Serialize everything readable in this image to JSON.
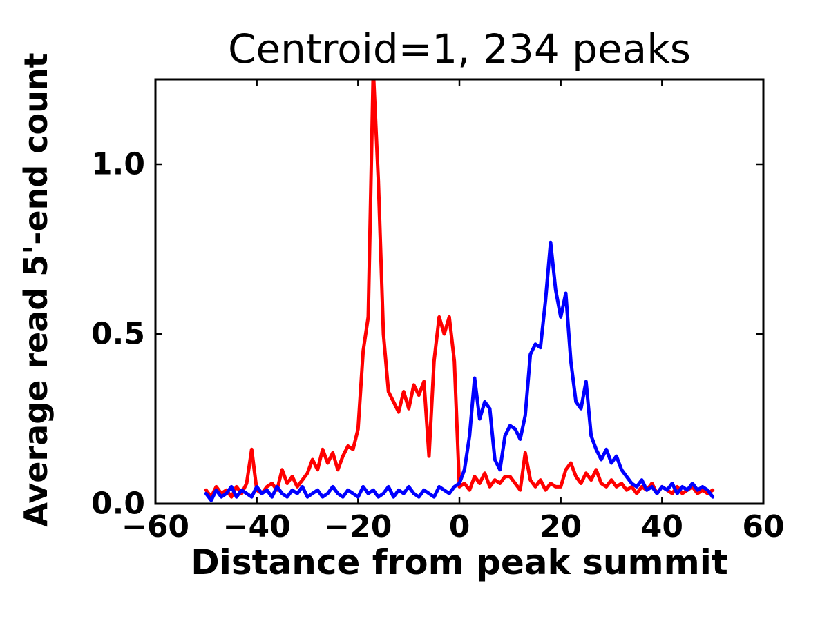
{
  "figure": {
    "background": "#ffffff"
  },
  "chart_data": {
    "type": "line",
    "title": "Centroid=1, 234 peaks",
    "xlabel": "Distance from peak summit",
    "ylabel": "Average read 5'-end count",
    "xlim": [
      -60,
      60
    ],
    "ylim": [
      0,
      1.25
    ],
    "xticks": [
      -60,
      -40,
      -20,
      0,
      20,
      40,
      60
    ],
    "xtick_labels": [
      "−60",
      "−40",
      "−20",
      "0",
      "20",
      "40",
      "60"
    ],
    "yticks": [
      0.0,
      0.5,
      1.0
    ],
    "ytick_labels": [
      "0.0",
      "0.5",
      "1.0"
    ],
    "grid": false,
    "legend_position": "none",
    "axis_color": "#000000",
    "line_width": 5,
    "x": [
      -50,
      -49,
      -48,
      -47,
      -46,
      -45,
      -44,
      -43,
      -42,
      -41,
      -40,
      -39,
      -38,
      -37,
      -36,
      -35,
      -34,
      -33,
      -32,
      -31,
      -30,
      -29,
      -28,
      -27,
      -26,
      -25,
      -24,
      -23,
      -22,
      -21,
      -20,
      -19,
      -18,
      -17,
      -16,
      -15,
      -14,
      -13,
      -12,
      -11,
      -10,
      -9,
      -8,
      -7,
      -6,
      -5,
      -4,
      -3,
      -2,
      -1,
      0,
      1,
      2,
      3,
      4,
      5,
      6,
      7,
      8,
      9,
      10,
      11,
      12,
      13,
      14,
      15,
      16,
      17,
      18,
      19,
      20,
      21,
      22,
      23,
      24,
      25,
      26,
      27,
      28,
      29,
      30,
      31,
      32,
      33,
      34,
      35,
      36,
      37,
      38,
      39,
      40,
      41,
      42,
      43,
      44,
      45,
      46,
      47,
      48,
      49,
      50
    ],
    "series": [
      {
        "name": "red-series",
        "color": "#ff0000",
        "values": [
          0.04,
          0.02,
          0.05,
          0.03,
          0.04,
          0.02,
          0.05,
          0.03,
          0.06,
          0.16,
          0.04,
          0.03,
          0.05,
          0.06,
          0.04,
          0.1,
          0.06,
          0.08,
          0.05,
          0.07,
          0.09,
          0.13,
          0.1,
          0.16,
          0.12,
          0.15,
          0.1,
          0.14,
          0.17,
          0.16,
          0.22,
          0.45,
          0.55,
          1.28,
          0.95,
          0.5,
          0.33,
          0.3,
          0.27,
          0.33,
          0.28,
          0.35,
          0.32,
          0.36,
          0.14,
          0.42,
          0.55,
          0.5,
          0.55,
          0.42,
          0.05,
          0.06,
          0.04,
          0.08,
          0.06,
          0.09,
          0.05,
          0.07,
          0.06,
          0.08,
          0.08,
          0.06,
          0.04,
          0.15,
          0.07,
          0.05,
          0.07,
          0.04,
          0.06,
          0.05,
          0.05,
          0.1,
          0.12,
          0.08,
          0.06,
          0.09,
          0.07,
          0.1,
          0.06,
          0.05,
          0.07,
          0.05,
          0.06,
          0.04,
          0.05,
          0.03,
          0.05,
          0.04,
          0.06,
          0.03,
          0.05,
          0.04,
          0.03,
          0.05,
          0.03,
          0.04,
          0.05,
          0.03,
          0.04,
          0.03,
          0.04
        ]
      },
      {
        "name": "blue-series",
        "color": "#0000ff",
        "values": [
          0.03,
          0.01,
          0.04,
          0.02,
          0.03,
          0.05,
          0.02,
          0.04,
          0.03,
          0.02,
          0.05,
          0.03,
          0.04,
          0.02,
          0.05,
          0.03,
          0.02,
          0.04,
          0.03,
          0.05,
          0.02,
          0.03,
          0.04,
          0.02,
          0.03,
          0.05,
          0.03,
          0.02,
          0.04,
          0.03,
          0.02,
          0.05,
          0.03,
          0.04,
          0.02,
          0.03,
          0.05,
          0.02,
          0.04,
          0.03,
          0.05,
          0.03,
          0.02,
          0.04,
          0.03,
          0.02,
          0.05,
          0.04,
          0.03,
          0.05,
          0.06,
          0.1,
          0.2,
          0.37,
          0.25,
          0.3,
          0.28,
          0.13,
          0.1,
          0.2,
          0.23,
          0.22,
          0.19,
          0.26,
          0.44,
          0.47,
          0.46,
          0.6,
          0.77,
          0.63,
          0.55,
          0.62,
          0.42,
          0.3,
          0.28,
          0.36,
          0.2,
          0.16,
          0.13,
          0.16,
          0.12,
          0.14,
          0.1,
          0.08,
          0.06,
          0.05,
          0.07,
          0.04,
          0.05,
          0.03,
          0.05,
          0.04,
          0.06,
          0.03,
          0.05,
          0.04,
          0.06,
          0.04,
          0.05,
          0.04,
          0.02
        ]
      }
    ]
  }
}
